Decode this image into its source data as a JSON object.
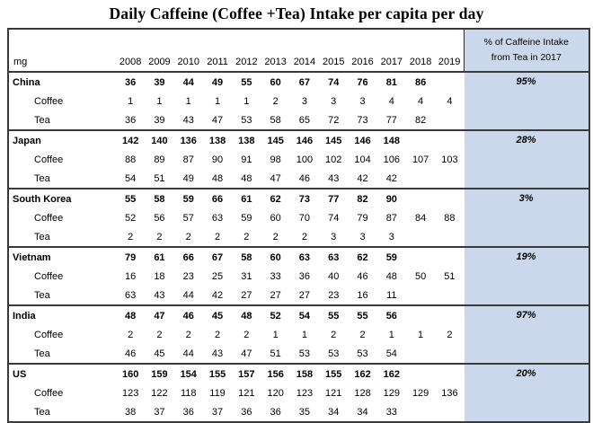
{
  "title": "Daily Caffeine (Coffee +Tea) Intake per capita per day",
  "header": {
    "unit": "mg",
    "pct_line1": "% of Caffeine Intake",
    "pct_line2": "from Tea in 2017"
  },
  "row_labels": {
    "coffee": "Coffee",
    "tea": "Tea"
  },
  "colors": {
    "highlight_column_bg": "#cbd8ec",
    "border": "#3a3a3a",
    "text": "#000000"
  },
  "chart_data": {
    "type": "table",
    "title": "Daily Caffeine (Coffee +Tea) Intake per capita per day",
    "unit": "mg",
    "years": [
      "2008",
      "2009",
      "2010",
      "2011",
      "2012",
      "2013",
      "2014",
      "2015",
      "2016",
      "2017",
      "2018",
      "2019"
    ],
    "pct_column_header": "% of Caffeine Intake from Tea in 2017",
    "countries": [
      {
        "name": "China",
        "total": [
          "36",
          "39",
          "44",
          "49",
          "55",
          "60",
          "67",
          "74",
          "76",
          "81",
          "86",
          ""
        ],
        "coffee": [
          "1",
          "1",
          "1",
          "1",
          "1",
          "2",
          "3",
          "3",
          "3",
          "4",
          "4",
          "4"
        ],
        "tea": [
          "36",
          "39",
          "43",
          "47",
          "53",
          "58",
          "65",
          "72",
          "73",
          "77",
          "82",
          ""
        ],
        "pct": "95%"
      },
      {
        "name": "Japan",
        "total": [
          "142",
          "140",
          "136",
          "138",
          "138",
          "145",
          "146",
          "145",
          "146",
          "148",
          "",
          ""
        ],
        "coffee": [
          "88",
          "89",
          "87",
          "90",
          "91",
          "98",
          "100",
          "102",
          "104",
          "106",
          "107",
          "103"
        ],
        "tea": [
          "54",
          "51",
          "49",
          "48",
          "48",
          "47",
          "46",
          "43",
          "42",
          "42",
          "",
          ""
        ],
        "pct": "28%"
      },
      {
        "name": "South Korea",
        "total": [
          "55",
          "58",
          "59",
          "66",
          "61",
          "62",
          "73",
          "77",
          "82",
          "90",
          "",
          ""
        ],
        "coffee": [
          "52",
          "56",
          "57",
          "63",
          "59",
          "60",
          "70",
          "74",
          "79",
          "87",
          "84",
          "88"
        ],
        "tea": [
          "2",
          "2",
          "2",
          "2",
          "2",
          "2",
          "2",
          "3",
          "3",
          "3",
          "",
          ""
        ],
        "pct": "3%"
      },
      {
        "name": "Vietnam",
        "total": [
          "79",
          "61",
          "66",
          "67",
          "58",
          "60",
          "63",
          "63",
          "62",
          "59",
          "",
          ""
        ],
        "coffee": [
          "16",
          "18",
          "23",
          "25",
          "31",
          "33",
          "36",
          "40",
          "46",
          "48",
          "50",
          "51"
        ],
        "tea": [
          "63",
          "43",
          "44",
          "42",
          "27",
          "27",
          "27",
          "23",
          "16",
          "11",
          "",
          ""
        ],
        "pct": "19%"
      },
      {
        "name": "India",
        "total": [
          "48",
          "47",
          "46",
          "45",
          "48",
          "52",
          "54",
          "55",
          "55",
          "56",
          "",
          ""
        ],
        "coffee": [
          "2",
          "2",
          "2",
          "2",
          "2",
          "1",
          "1",
          "2",
          "2",
          "1",
          "1",
          "2"
        ],
        "tea": [
          "46",
          "45",
          "44",
          "43",
          "47",
          "51",
          "53",
          "53",
          "53",
          "54",
          "",
          ""
        ],
        "pct": "97%"
      },
      {
        "name": "US",
        "total": [
          "160",
          "159",
          "154",
          "155",
          "157",
          "156",
          "158",
          "155",
          "162",
          "162",
          "",
          ""
        ],
        "coffee": [
          "123",
          "122",
          "118",
          "119",
          "121",
          "120",
          "123",
          "121",
          "128",
          "129",
          "129",
          "136"
        ],
        "tea": [
          "38",
          "37",
          "36",
          "37",
          "36",
          "36",
          "35",
          "34",
          "34",
          "33",
          "",
          ""
        ],
        "pct": "20%"
      }
    ]
  }
}
